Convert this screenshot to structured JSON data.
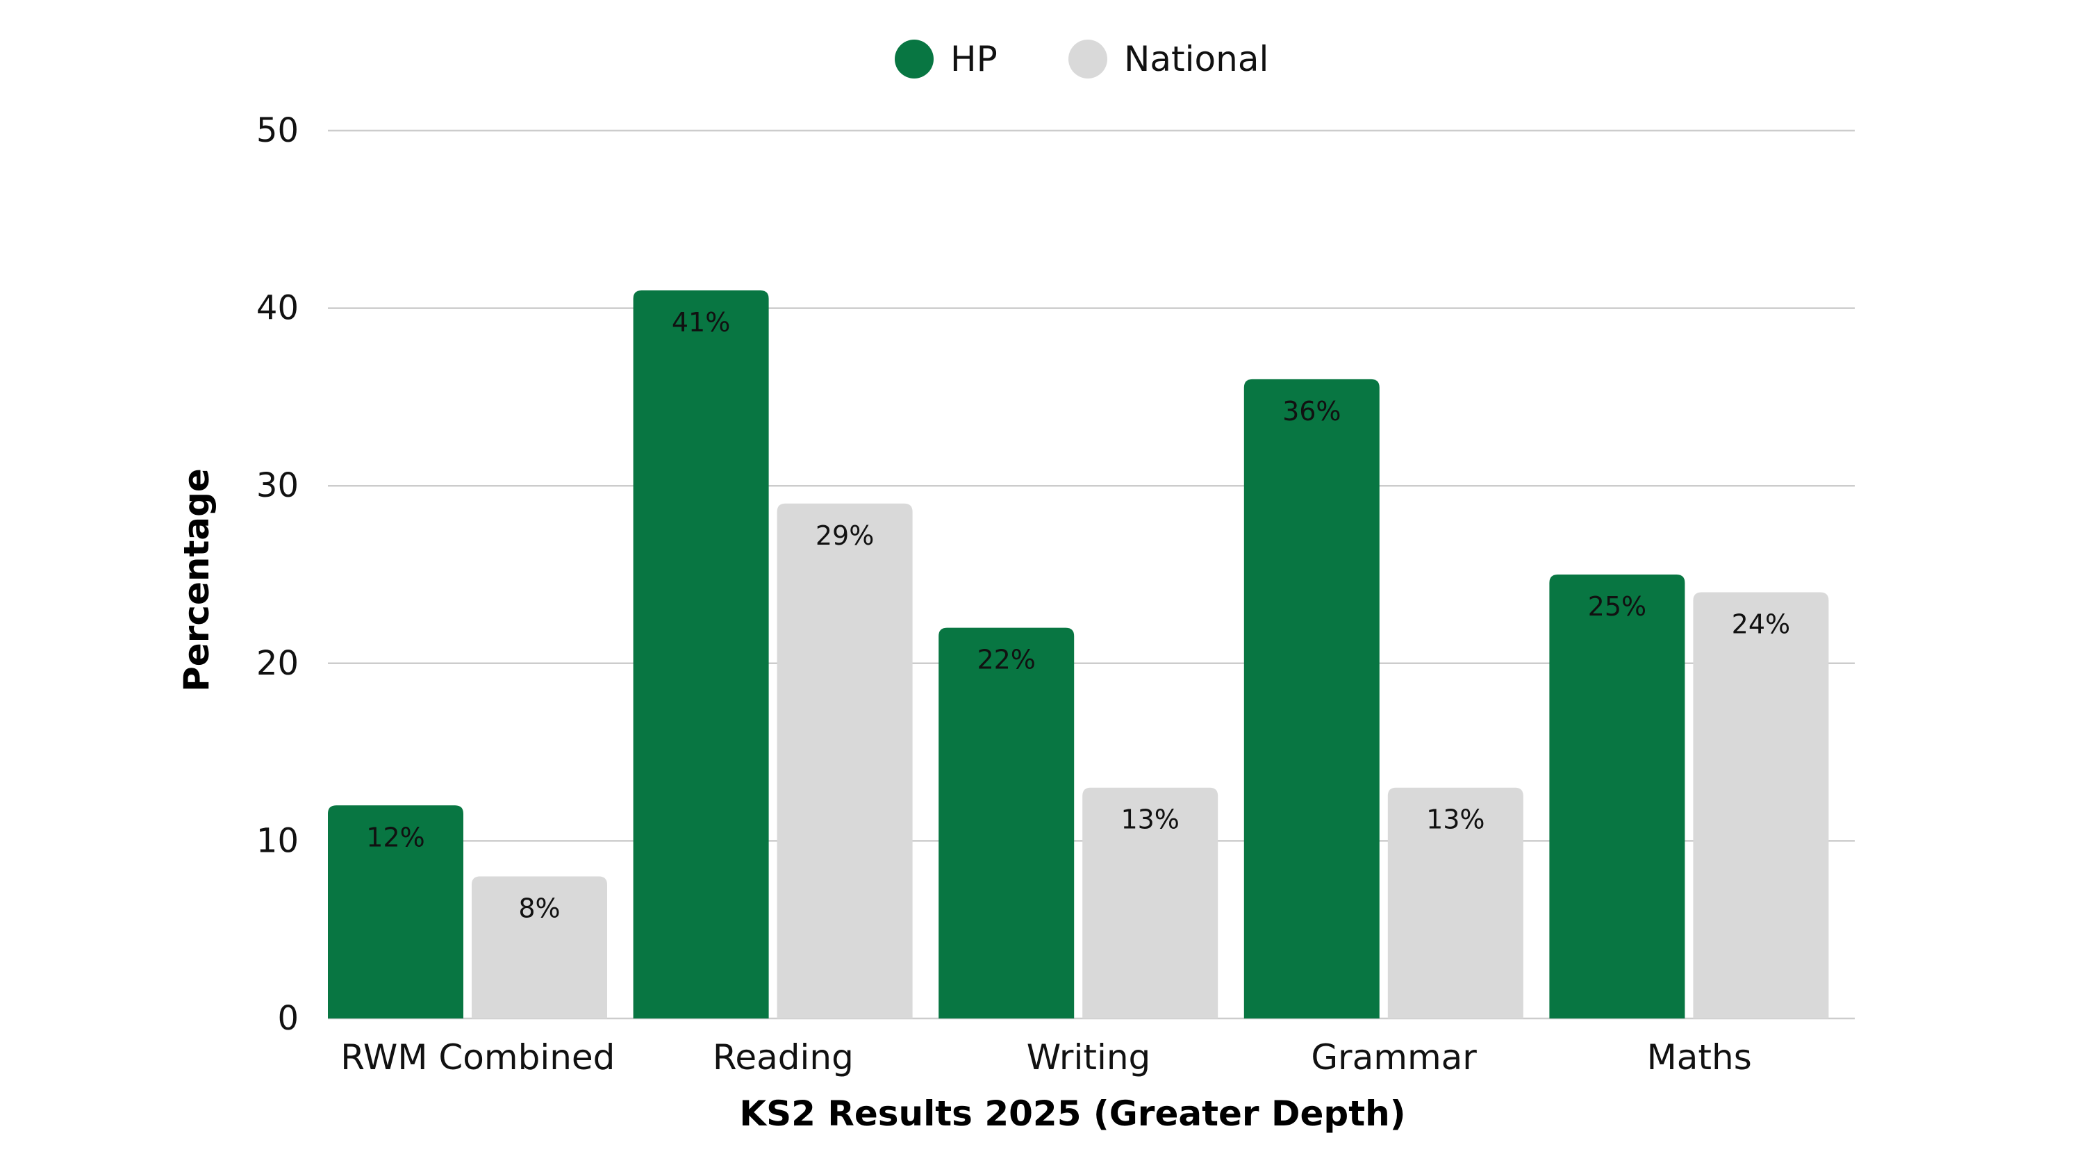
{
  "chart_data": {
    "type": "bar",
    "title": "",
    "xlabel": "KS2 Results 2025 (Greater Depth)",
    "ylabel": "Percentage",
    "categories": [
      "RWM Combined",
      "Reading",
      "Writing",
      "Grammar",
      "Maths"
    ],
    "series": [
      {
        "name": "HP",
        "color": "#087642",
        "values": [
          12,
          41,
          22,
          36,
          25
        ],
        "labels": [
          "12%",
          "41%",
          "22%",
          "36%",
          "25%"
        ]
      },
      {
        "name": "National",
        "color": "#d9d9d9",
        "values": [
          8,
          29,
          13,
          13,
          24
        ],
        "labels": [
          "8%",
          "29%",
          "13%",
          "13%",
          "24%"
        ]
      }
    ],
    "ylim": [
      0,
      50
    ],
    "yticks": [
      0,
      10,
      20,
      30,
      40,
      50
    ],
    "grid": true,
    "legend": "top-center"
  }
}
